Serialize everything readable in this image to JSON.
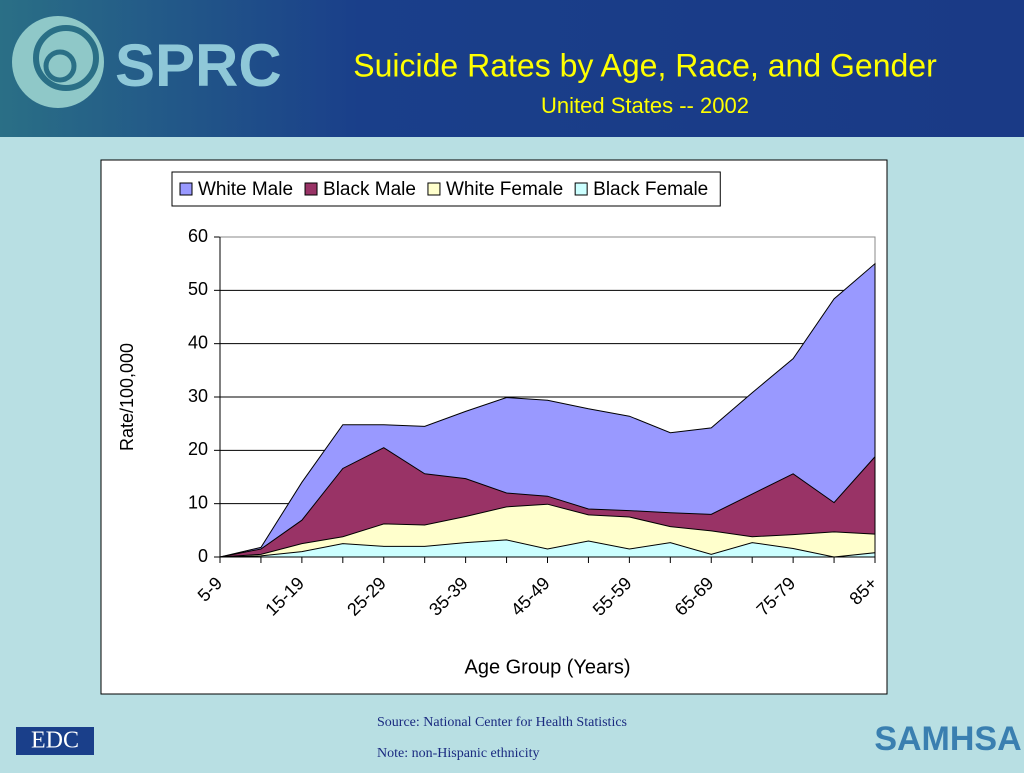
{
  "header": {
    "logo": "SPRC",
    "title": "Suicide Rates by Age, Race, and Gender",
    "subtitle": "United States -- 2002"
  },
  "chart_data": {
    "type": "area",
    "ylabel": "Rate/100,000",
    "xlabel": "Age Group (Years)",
    "categories": [
      "5-9",
      null,
      "15-19",
      null,
      "25-29",
      null,
      "35-39",
      null,
      "45-49",
      null,
      "55-59",
      null,
      "65-69",
      null,
      "75-79",
      null,
      "85+"
    ],
    "series": [
      {
        "name": "White Male",
        "color": "#9999ff",
        "values": [
          0,
          1.8,
          14,
          24.8,
          24.8,
          24.5,
          27.3,
          29.9,
          29.4,
          27.8,
          26.4,
          23.3,
          24.2,
          30.8,
          37.2,
          48.4,
          55
        ]
      },
      {
        "name": "Black Male",
        "color": "#993366",
        "values": [
          0,
          1.5,
          6.9,
          16.6,
          20.5,
          15.6,
          14.7,
          12,
          11.4,
          9,
          8.7,
          8.3,
          8,
          11.8,
          15.6,
          10.2,
          18.8
        ]
      },
      {
        "name": "White Female",
        "color": "#ffffcc",
        "values": [
          0,
          0.5,
          2.5,
          3.8,
          6.2,
          6,
          7.6,
          9.4,
          9.9,
          7.9,
          7.5,
          5.7,
          4.9,
          3.8,
          4.2,
          4.7,
          4.3
        ]
      },
      {
        "name": "Black Female",
        "color": "#ccffff",
        "values": [
          0,
          0.2,
          1,
          2.5,
          2,
          2,
          2.7,
          3.2,
          1.5,
          3,
          1.5,
          2.7,
          0.5,
          2.7,
          1.6,
          0,
          0.8
        ]
      }
    ],
    "ylim": [
      0,
      60
    ],
    "yticks": [
      0,
      10,
      20,
      30,
      40,
      50,
      60
    ],
    "grid": true,
    "legend": "top"
  },
  "footer": {
    "source": "Source:  National Center for Health Statistics",
    "note": "Note: non-Hispanic ethnicity",
    "left_logo": "EDC",
    "right_logo": "SAMHSA"
  }
}
